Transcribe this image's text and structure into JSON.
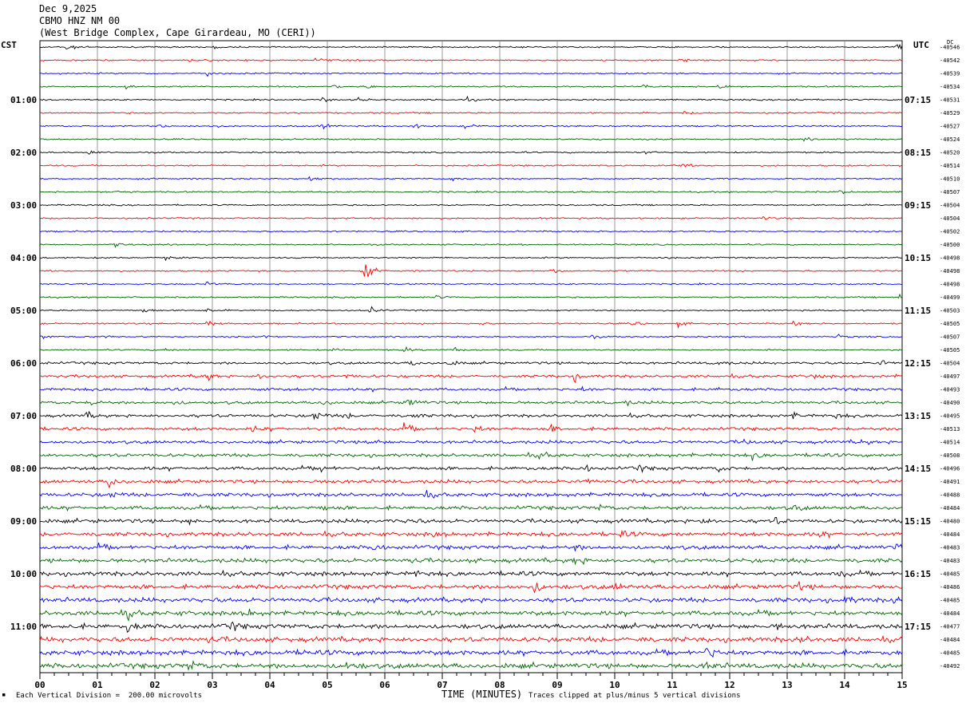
{
  "header": {
    "date": "Dec 9,2025",
    "station": "CBMO HNZ NM 00",
    "location": "(West Bridge Complex, Cape Girardeau, MO (CERI))"
  },
  "corner_labels": {
    "left": "CST",
    "right": "UTC",
    "dc": "DC"
  },
  "footer": {
    "division_note": "Each Vertical Division =  200.00 microvolts",
    "clip_note": "Traces clipped at plus/minus 5 vertical divisions",
    "scale_mark": "▪"
  },
  "colors": {
    "trace_cycle": [
      "#000000",
      "#ff0000",
      "#0000ff",
      "#006400"
    ],
    "grid": "#808080"
  },
  "chart_data": {
    "type": "helicorder",
    "xlabel": "TIME (MINUTES)",
    "xlim": [
      0,
      15
    ],
    "x_ticks": [
      "00",
      "01",
      "02",
      "03",
      "04",
      "05",
      "06",
      "07",
      "08",
      "09",
      "10",
      "11",
      "12",
      "13",
      "14",
      "15"
    ],
    "left_time_labels": [
      "01:00",
      "02:00",
      "03:00",
      "04:00",
      "05:00",
      "06:00",
      "07:00",
      "08:00",
      "09:00",
      "10:00",
      "11:00"
    ],
    "right_time_labels": [
      "07:15",
      "08:15",
      "09:15",
      "10:15",
      "11:15",
      "12:15",
      "13:15",
      "14:15",
      "15:15",
      "16:15",
      "17:15"
    ],
    "time_label_every_n_traces": 4,
    "time_label_first_trace": 4,
    "dc_offsets": [
      -40546,
      -40542,
      -40539,
      -40534,
      -40531,
      -40529,
      -40527,
      -40524,
      -40520,
      -40514,
      -40510,
      -40507,
      -40504,
      -40504,
      -40502,
      -40500,
      -40498,
      -40498,
      -40498,
      -40499,
      -40503,
      -40505,
      -40507,
      -40505,
      -40504,
      -40497,
      -40493,
      -40490,
      -40495,
      -40513,
      -40514,
      -40508,
      -40496,
      -40491,
      -40488,
      -40484,
      -40480,
      -40484,
      -40483,
      -40483,
      -40485,
      -40486,
      -40485,
      -40484,
      -40477,
      -40484,
      -40485,
      -40492
    ],
    "events": [
      {
        "trace": 0,
        "minute": 0.45,
        "amp": 5
      },
      {
        "trace": 0,
        "minute": 3.0,
        "amp": 2
      },
      {
        "trace": 0,
        "minute": 14.9,
        "amp": 5
      },
      {
        "trace": 1,
        "minute": 2.6,
        "amp": 2
      },
      {
        "trace": 1,
        "minute": 3.6,
        "amp": 3
      },
      {
        "trace": 1,
        "minute": 4.8,
        "amp": 3
      },
      {
        "trace": 1,
        "minute": 11.15,
        "amp": 4
      },
      {
        "trace": 2,
        "minute": 2.9,
        "amp": 4
      },
      {
        "trace": 3,
        "minute": 1.5,
        "amp": 4
      },
      {
        "trace": 3,
        "minute": 5.1,
        "amp": 3
      },
      {
        "trace": 3,
        "minute": 5.7,
        "amp": 3
      },
      {
        "trace": 3,
        "minute": 10.5,
        "amp": 2
      },
      {
        "trace": 3,
        "minute": 11.8,
        "amp": 5
      },
      {
        "trace": 4,
        "minute": 4.9,
        "amp": 3
      },
      {
        "trace": 4,
        "minute": 5.55,
        "amp": 3
      },
      {
        "trace": 4,
        "minute": 7.4,
        "amp": 4
      },
      {
        "trace": 4,
        "minute": 13.1,
        "amp": 4
      },
      {
        "trace": 5,
        "minute": 11.2,
        "amp": 2
      },
      {
        "trace": 6,
        "minute": 2.05,
        "amp": 3
      },
      {
        "trace": 6,
        "minute": 2.95,
        "amp": 2
      },
      {
        "trace": 6,
        "minute": 4.9,
        "amp": 4
      },
      {
        "trace": 6,
        "minute": 6.5,
        "amp": 3
      },
      {
        "trace": 6,
        "minute": 7.4,
        "amp": 3
      },
      {
        "trace": 7,
        "minute": 9.4,
        "amp": 2
      },
      {
        "trace": 7,
        "minute": 13.3,
        "amp": 2
      },
      {
        "trace": 8,
        "minute": 0.85,
        "amp": 3
      },
      {
        "trace": 8,
        "minute": 8.25,
        "amp": 2
      },
      {
        "trace": 8,
        "minute": 10.5,
        "amp": 3
      },
      {
        "trace": 9,
        "minute": 11.15,
        "amp": 4
      },
      {
        "trace": 10,
        "minute": 4.7,
        "amp": 4
      },
      {
        "trace": 10,
        "minute": 7.15,
        "amp": 3
      },
      {
        "trace": 11,
        "minute": 1.3,
        "amp": 3
      },
      {
        "trace": 11,
        "minute": 13.9,
        "amp": 3
      },
      {
        "trace": 13,
        "minute": 12.55,
        "amp": 3
      },
      {
        "trace": 15,
        "minute": 1.3,
        "amp": 3
      },
      {
        "trace": 16,
        "minute": 2.2,
        "amp": 3
      },
      {
        "trace": 16,
        "minute": 10.75,
        "amp": 2
      },
      {
        "trace": 17,
        "minute": 5.65,
        "amp": 14
      },
      {
        "trace": 17,
        "minute": 8.9,
        "amp": 3
      },
      {
        "trace": 18,
        "minute": 2.9,
        "amp": 3
      },
      {
        "trace": 19,
        "minute": 6.9,
        "amp": 2
      },
      {
        "trace": 19,
        "minute": 14.95,
        "amp": 4
      },
      {
        "trace": 20,
        "minute": 1.8,
        "amp": 4
      },
      {
        "trace": 20,
        "minute": 2.9,
        "amp": 4
      },
      {
        "trace": 20,
        "minute": 5.75,
        "amp": 4
      },
      {
        "trace": 21,
        "minute": 2.9,
        "amp": 4
      },
      {
        "trace": 21,
        "minute": 7.6,
        "amp": 3
      },
      {
        "trace": 21,
        "minute": 10.3,
        "amp": 4
      },
      {
        "trace": 21,
        "minute": 11.1,
        "amp": 3
      },
      {
        "trace": 21,
        "minute": 13.1,
        "amp": 3
      },
      {
        "trace": 21,
        "minute": 14.95,
        "amp": 4
      },
      {
        "trace": 22,
        "minute": 0.05,
        "amp": 3
      },
      {
        "trace": 22,
        "minute": 1.1,
        "amp": 2
      },
      {
        "trace": 22,
        "minute": 3.9,
        "amp": 2
      },
      {
        "trace": 22,
        "minute": 9.6,
        "amp": 2
      },
      {
        "trace": 22,
        "minute": 13.85,
        "amp": 3
      },
      {
        "trace": 23,
        "minute": 2.15,
        "amp": 3
      },
      {
        "trace": 23,
        "minute": 5.1,
        "amp": 2
      },
      {
        "trace": 23,
        "minute": 6.35,
        "amp": 3
      },
      {
        "trace": 23,
        "minute": 7.2,
        "amp": 3
      },
      {
        "trace": 24,
        "minute": 6.45,
        "amp": 4
      },
      {
        "trace": 24,
        "minute": 7.1,
        "amp": 4
      },
      {
        "trace": 24,
        "minute": 11.8,
        "amp": 3
      },
      {
        "trace": 24,
        "minute": 14.6,
        "amp": 5
      },
      {
        "trace": 25,
        "minute": 2.85,
        "amp": 10
      },
      {
        "trace": 25,
        "minute": 3.8,
        "amp": 4
      },
      {
        "trace": 25,
        "minute": 5.3,
        "amp": 3
      },
      {
        "trace": 25,
        "minute": 9.3,
        "amp": 5
      },
      {
        "trace": 25,
        "minute": 13.4,
        "amp": 4
      },
      {
        "trace": 26,
        "minute": 3.8,
        "amp": 3
      },
      {
        "trace": 26,
        "minute": 9.4,
        "amp": 3
      },
      {
        "trace": 26,
        "minute": 11.8,
        "amp": 3
      },
      {
        "trace": 27,
        "minute": 0.9,
        "amp": 5
      },
      {
        "trace": 27,
        "minute": 2.3,
        "amp": 4
      },
      {
        "trace": 27,
        "minute": 4.9,
        "amp": 5
      },
      {
        "trace": 27,
        "minute": 6.4,
        "amp": 8
      },
      {
        "trace": 27,
        "minute": 10.2,
        "amp": 3
      },
      {
        "trace": 28,
        "minute": 0.8,
        "amp": 4
      },
      {
        "trace": 28,
        "minute": 4.75,
        "amp": 7
      },
      {
        "trace": 28,
        "minute": 5.3,
        "amp": 4
      },
      {
        "trace": 28,
        "minute": 6.4,
        "amp": 5
      },
      {
        "trace": 28,
        "minute": 13.1,
        "amp": 4
      },
      {
        "trace": 28,
        "minute": 13.8,
        "amp": 4
      },
      {
        "trace": 29,
        "minute": 3.7,
        "amp": 4
      },
      {
        "trace": 29,
        "minute": 6.3,
        "amp": 8
      },
      {
        "trace": 29,
        "minute": 7.55,
        "amp": 5
      },
      {
        "trace": 29,
        "minute": 8.9,
        "amp": 4
      },
      {
        "trace": 30,
        "minute": 5.7,
        "amp": 7
      },
      {
        "trace": 30,
        "minute": 12.2,
        "amp": 4
      },
      {
        "trace": 30,
        "minute": 14.3,
        "amp": 3
      },
      {
        "trace": 31,
        "minute": 8.7,
        "amp": 5
      },
      {
        "trace": 31,
        "minute": 12.4,
        "amp": 4
      },
      {
        "trace": 31,
        "minute": 13.5,
        "amp": 4
      },
      {
        "trace": 32,
        "minute": 4.9,
        "amp": 4
      },
      {
        "trace": 32,
        "minute": 8.3,
        "amp": 4
      },
      {
        "trace": 32,
        "minute": 9.5,
        "amp": 4
      },
      {
        "trace": 32,
        "minute": 10.4,
        "amp": 4
      },
      {
        "trace": 32,
        "minute": 11.8,
        "amp": 4
      },
      {
        "trace": 33,
        "minute": 1.2,
        "amp": 10
      },
      {
        "trace": 33,
        "minute": 5.0,
        "amp": 3
      },
      {
        "trace": 33,
        "minute": 9.5,
        "amp": 4
      },
      {
        "trace": 33,
        "minute": 14.9,
        "amp": 4
      },
      {
        "trace": 34,
        "minute": 1.2,
        "amp": 4
      },
      {
        "trace": 34,
        "minute": 2.5,
        "amp": 3
      },
      {
        "trace": 34,
        "minute": 6.7,
        "amp": 4
      },
      {
        "trace": 34,
        "minute": 13.5,
        "amp": 3
      },
      {
        "trace": 35,
        "minute": 4.9,
        "amp": 4
      },
      {
        "trace": 35,
        "minute": 9.7,
        "amp": 5
      },
      {
        "trace": 35,
        "minute": 13.1,
        "amp": 4
      },
      {
        "trace": 36,
        "minute": 2.6,
        "amp": 4
      },
      {
        "trace": 36,
        "minute": 6.4,
        "amp": 5
      },
      {
        "trace": 36,
        "minute": 11.5,
        "amp": 4
      },
      {
        "trace": 36,
        "minute": 12.8,
        "amp": 4
      },
      {
        "trace": 37,
        "minute": 6.8,
        "amp": 4
      },
      {
        "trace": 37,
        "minute": 10.1,
        "amp": 5
      },
      {
        "trace": 37,
        "minute": 13.5,
        "amp": 6
      },
      {
        "trace": 38,
        "minute": 1.0,
        "amp": 3
      },
      {
        "trace": 38,
        "minute": 5.8,
        "amp": 4
      },
      {
        "trace": 38,
        "minute": 9.3,
        "amp": 3
      },
      {
        "trace": 38,
        "minute": 14.9,
        "amp": 3
      },
      {
        "trace": 39,
        "minute": 6.4,
        "amp": 3
      },
      {
        "trace": 39,
        "minute": 9.3,
        "amp": 7
      },
      {
        "trace": 40,
        "minute": 6.5,
        "amp": 4
      },
      {
        "trace": 40,
        "minute": 8.2,
        "amp": 4
      },
      {
        "trace": 40,
        "minute": 13.9,
        "amp": 4
      },
      {
        "trace": 41,
        "minute": 8.6,
        "amp": 8
      },
      {
        "trace": 41,
        "minute": 10.0,
        "amp": 5
      },
      {
        "trace": 41,
        "minute": 13.2,
        "amp": 5
      },
      {
        "trace": 42,
        "minute": 14.0,
        "amp": 4
      },
      {
        "trace": 42,
        "minute": 14.8,
        "amp": 4
      },
      {
        "trace": 43,
        "minute": 1.5,
        "amp": 6
      },
      {
        "trace": 43,
        "minute": 3.6,
        "amp": 5
      },
      {
        "trace": 44,
        "minute": 0.4,
        "amp": 4
      },
      {
        "trace": 44,
        "minute": 1.5,
        "amp": 8
      },
      {
        "trace": 44,
        "minute": 3.3,
        "amp": 6
      },
      {
        "trace": 44,
        "minute": 12.8,
        "amp": 4
      },
      {
        "trace": 45,
        "minute": 2.9,
        "amp": 4
      },
      {
        "trace": 45,
        "minute": 10.4,
        "amp": 4
      },
      {
        "trace": 45,
        "minute": 13.2,
        "amp": 4
      },
      {
        "trace": 46,
        "minute": 11.6,
        "amp": 10
      },
      {
        "trace": 46,
        "minute": 4.6,
        "amp": 4
      },
      {
        "trace": 47,
        "minute": 2.6,
        "amp": 8
      },
      {
        "trace": 47,
        "minute": 5.3,
        "amp": 10
      },
      {
        "trace": 47,
        "minute": 11.6,
        "amp": 5
      }
    ]
  }
}
